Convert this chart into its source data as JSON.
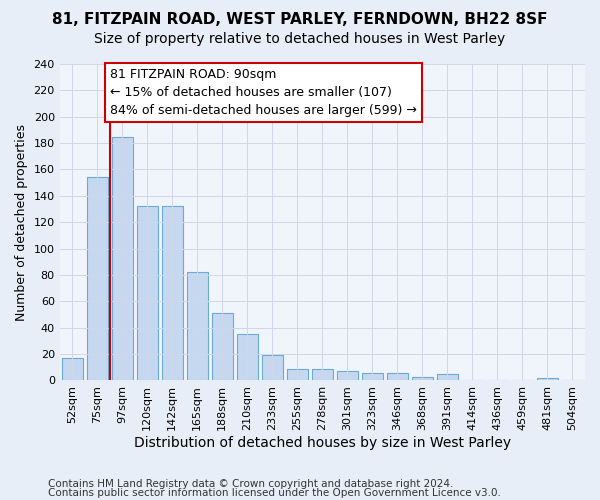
{
  "title1": "81, FITZPAIN ROAD, WEST PARLEY, FERNDOWN, BH22 8SF",
  "title2": "Size of property relative to detached houses in West Parley",
  "xlabel": "Distribution of detached houses by size in West Parley",
  "ylabel": "Number of detached properties",
  "footer1": "Contains HM Land Registry data © Crown copyright and database right 2024.",
  "footer2": "Contains public sector information licensed under the Open Government Licence v3.0.",
  "bin_labels": [
    "52sqm",
    "75sqm",
    "97sqm",
    "120sqm",
    "142sqm",
    "165sqm",
    "188sqm",
    "210sqm",
    "233sqm",
    "255sqm",
    "278sqm",
    "301sqm",
    "323sqm",
    "346sqm",
    "368sqm",
    "391sqm",
    "414sqm",
    "436sqm",
    "459sqm",
    "481sqm",
    "504sqm"
  ],
  "bar_values": [
    17,
    154,
    185,
    132,
    132,
    82,
    51,
    35,
    19,
    9,
    9,
    7,
    6,
    6,
    3,
    5,
    0,
    0,
    0,
    2,
    0
  ],
  "bar_color": "#c5d8f0",
  "bar_edge_color": "#6aaad4",
  "vline_x_index": 2,
  "vline_color": "#cc0000",
  "annotation_line1": "81 FITZPAIN ROAD: 90sqm",
  "annotation_line2": "← 15% of detached houses are smaller (107)",
  "annotation_line3": "84% of semi-detached houses are larger (599) →",
  "annotation_box_color": "white",
  "annotation_box_edge": "#cc0000",
  "ylim": [
    0,
    240
  ],
  "yticks": [
    0,
    20,
    40,
    60,
    80,
    100,
    120,
    140,
    160,
    180,
    200,
    220,
    240
  ],
  "bg_color": "#e8eef7",
  "plot_bg_color": "#f0f4fb",
  "grid_color": "#d0d8e8",
  "title1_fontsize": 11,
  "title2_fontsize": 10,
  "xlabel_fontsize": 10,
  "ylabel_fontsize": 9,
  "tick_fontsize": 8,
  "annotation_fontsize": 9,
  "footer_fontsize": 7.5
}
